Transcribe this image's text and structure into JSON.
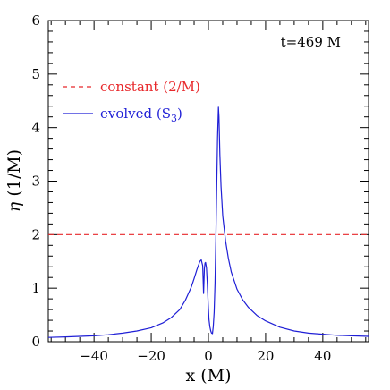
{
  "chart_data": {
    "type": "line",
    "title": "",
    "annotation": "t=469 M",
    "xlabel": "x (M)",
    "ylabel_symbol": "η",
    "ylabel_unit": "(1/M)",
    "xlim": [
      -56,
      56
    ],
    "ylim": [
      0,
      6
    ],
    "x_ticks": [
      -40,
      -20,
      0,
      20,
      40
    ],
    "x_tick_labels": [
      "−40",
      "−20",
      "0",
      "20",
      "40"
    ],
    "y_ticks": [
      0,
      1,
      2,
      3,
      4,
      5,
      6
    ],
    "y_tick_labels": [
      "0",
      "1",
      "2",
      "3",
      "4",
      "5",
      "6"
    ],
    "x_minor_step": 5,
    "y_minor_step": 0.2,
    "grid": false,
    "legend_position": "top-left",
    "series": [
      {
        "name": "constant (2/M)",
        "label_main": "constant (2/M)",
        "color": "#e8282b",
        "style": "dashed",
        "x": [
          -56,
          56
        ],
        "y": [
          2,
          2
        ]
      },
      {
        "name": "evolved (S3)",
        "label_main": "evolved (S",
        "label_sub": "3",
        "label_end": ")",
        "color": "#1f1fd6",
        "style": "solid",
        "x": [
          -56,
          -50,
          -45,
          -40,
          -35,
          -30,
          -25,
          -20,
          -16,
          -13,
          -10,
          -8,
          -6,
          -5,
          -4,
          -3,
          -2.5,
          -2,
          -1.7,
          -1.4,
          -1.2,
          -1,
          -0.7,
          -0.4,
          -0.1,
          0.2,
          0.5,
          0.8,
          1.1,
          1.4,
          1.7,
          2,
          2.3,
          2.6,
          2.9,
          3.2,
          3.5,
          3.7,
          4,
          4.4,
          5,
          6,
          7,
          8,
          10,
          12,
          14,
          17,
          20,
          25,
          30,
          35,
          40,
          45,
          50,
          56
        ],
        "y": [
          0.08,
          0.09,
          0.1,
          0.11,
          0.13,
          0.16,
          0.2,
          0.26,
          0.35,
          0.45,
          0.6,
          0.78,
          1.02,
          1.18,
          1.35,
          1.5,
          1.53,
          1.42,
          0.9,
          1.36,
          1.47,
          1.48,
          1.38,
          1.1,
          0.72,
          0.42,
          0.28,
          0.2,
          0.16,
          0.15,
          0.28,
          0.55,
          1.1,
          1.9,
          2.9,
          3.8,
          4.38,
          4.2,
          3.5,
          2.9,
          2.35,
          1.88,
          1.55,
          1.3,
          0.98,
          0.78,
          0.64,
          0.49,
          0.39,
          0.27,
          0.2,
          0.16,
          0.14,
          0.12,
          0.11,
          0.1
        ]
      }
    ]
  }
}
